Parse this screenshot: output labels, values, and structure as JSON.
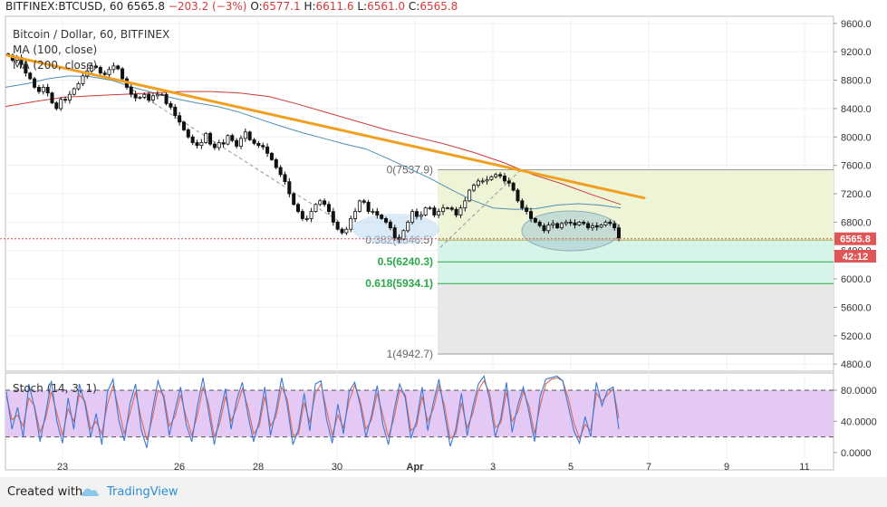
{
  "header": {
    "symbol": "BITFINEX:BTCUSD, 60",
    "last": "6565.8",
    "change": "−203.2 (−3%)",
    "open_label": "O:",
    "open": "6577.1",
    "high_label": "H:",
    "high": "6611.6",
    "low_label": "L:",
    "low": "6561.0",
    "close_label": "C:",
    "close": "6565.8"
  },
  "legend": {
    "title": "Bitcoin / Dollar, 60, BITFINEX",
    "ma100": "MA (100, close)",
    "ma200": "MA (200, close)",
    "stoch": "Stoch (14, 3, 1)"
  },
  "price_badge": "6565.8",
  "time_badge": "42:12",
  "footer": {
    "created_with": "Created with",
    "brand": "TradingView",
    "icon": "tradingview-cloud-icon"
  },
  "colors": {
    "trendline": "#f0a020",
    "ma100": "#4f8fb0",
    "ma200": "#d03a3a",
    "stoch_k": "#3a78d6",
    "stoch_d": "#e06a50",
    "stoch_band": "#e3c9f4",
    "fib_upper": "#eef5d6",
    "fib_mid": "#d7f4e8",
    "fib_lower": "#e8e8e8",
    "badge": "#e05555"
  },
  "chart_data": [
    {
      "type": "candlestick",
      "x_ticks": [
        "23",
        "26",
        "28",
        "30",
        "Apr",
        "3",
        "5",
        "7",
        "9",
        "11"
      ],
      "y_ticks": [
        4800.0,
        5200.0,
        5600.0,
        6000.0,
        6400.0,
        6800.0,
        7200.0,
        7600.0,
        8000.0,
        8400.0,
        8800.0,
        9200.0,
        9600.0
      ],
      "ylim": [
        4700,
        9700
      ],
      "close": [
        9150,
        9080,
        9120,
        9020,
        8900,
        8820,
        8700,
        8640,
        8700,
        8620,
        8480,
        8400,
        8530,
        8520,
        8600,
        8680,
        8750,
        8860,
        8930,
        9000,
        8980,
        8900,
        8880,
        8950,
        9000,
        8960,
        8820,
        8700,
        8600,
        8550,
        8560,
        8600,
        8520,
        8580,
        8600,
        8600,
        8470,
        8420,
        8300,
        8210,
        8100,
        8000,
        7920,
        7880,
        7920,
        8050,
        7900,
        7850,
        7920,
        7900,
        8020,
        7950,
        7870,
        7980,
        8070,
        7960,
        7910,
        7880,
        7860,
        7770,
        7680,
        7570,
        7470,
        7370,
        7200,
        7050,
        6950,
        6850,
        6850,
        6950,
        7050,
        7100,
        7050,
        6950,
        6800,
        6700,
        6650,
        6700,
        6850,
        6950,
        7100,
        7080,
        6950,
        6950,
        6900,
        6850,
        6800,
        6720,
        6580,
        6560,
        6680,
        6800,
        6950,
        6880,
        6900,
        7000,
        7000,
        6900,
        6950,
        7000,
        7000,
        6980,
        6900,
        7000,
        7100,
        7250,
        7320,
        7380,
        7380,
        7400,
        7440,
        7470,
        7450,
        7380,
        7350,
        7250,
        7100,
        7000,
        6950,
        6850,
        6800,
        6750,
        6680,
        6760,
        6780,
        6720,
        6780,
        6800,
        6790,
        6760,
        6800,
        6780,
        6720,
        6750,
        6730,
        6760,
        6800,
        6780,
        6720,
        6580
      ],
      "trendline": {
        "from": {
          "x": "22",
          "y": 9150
        },
        "to": {
          "x": "6",
          "y": 7140
        }
      },
      "ma100": [
        8700,
        8750,
        8820,
        8860,
        8850,
        8800,
        8700,
        8620,
        8540,
        8480,
        8430,
        8350,
        8250,
        8150,
        8060,
        7980,
        7900,
        7830,
        7700,
        7560,
        7420,
        7260,
        7110,
        7000,
        6980,
        6990,
        7040,
        7060,
        7040,
        7000
      ],
      "ma200": [
        8430,
        8500,
        8560,
        8580,
        8600,
        8620,
        8640,
        8640,
        8620,
        8570,
        8460,
        8340,
        8220,
        8100,
        8000,
        7900,
        7780,
        7640,
        7470,
        7340,
        7190,
        7050
      ],
      "fibonacci": [
        {
          "label": "0(7537.9)",
          "level": 7537.9
        },
        {
          "label": "0.382(6546.5)",
          "level": 6546.5
        },
        {
          "label": "0.5(6240.3)",
          "level": 6240.3
        },
        {
          "label": "0.618(5934.1)",
          "level": 5934.1
        },
        {
          "label": "1(4942.7)",
          "level": 4942.7
        }
      ],
      "last_price": 6565.8
    },
    {
      "type": "line",
      "name": "Stoch (14, 3, 1)",
      "y_ticks": [
        0.0,
        40.0,
        80.0
      ],
      "band": [
        20,
        80
      ],
      "ylim": [
        -6,
        102
      ],
      "series": [
        {
          "name": "%K",
          "values": [
            78,
            30,
            58,
            20,
            88,
            58,
            14,
            50,
            92,
            40,
            12,
            70,
            30,
            88,
            62,
            20,
            50,
            10,
            78,
            94,
            42,
            15,
            62,
            88,
            30,
            6,
            54,
            92,
            70,
            22,
            54,
            84,
            36,
            14,
            60,
            96,
            52,
            10,
            48,
            82,
            30,
            68,
            90,
            48,
            14,
            40,
            84,
            22,
            54,
            96,
            60,
            10,
            30,
            76,
            28,
            88,
            92,
            42,
            12,
            62,
            24,
            78,
            90,
            60,
            20,
            48,
            86,
            36,
            10,
            54,
            88,
            70,
            18,
            40,
            84,
            28,
            64,
            94,
            50,
            8,
            30,
            76,
            22,
            58,
            88,
            98,
            68,
            20,
            44,
            90,
            26,
            60,
            84,
            52,
            14,
            72,
            94,
            96,
            98,
            92,
            60,
            28,
            12,
            46,
            20,
            90,
            60,
            80,
            84,
            30
          ]
        },
        {
          "name": "%D",
          "values": [
            72,
            42,
            48,
            34,
            70,
            60,
            26,
            44,
            78,
            50,
            22,
            56,
            40,
            74,
            66,
            30,
            40,
            24,
            62,
            86,
            56,
            24,
            50,
            78,
            44,
            16,
            44,
            80,
            74,
            34,
            46,
            74,
            46,
            22,
            48,
            84,
            62,
            20,
            38,
            72,
            40,
            58,
            82,
            58,
            24,
            34,
            72,
            34,
            46,
            84,
            68,
            22,
            24,
            64,
            38,
            76,
            88,
            54,
            22,
            48,
            32,
            66,
            86,
            66,
            30,
            42,
            76,
            48,
            20,
            44,
            80,
            74,
            28,
            34,
            72,
            40,
            56,
            86,
            60,
            18,
            24,
            64,
            32,
            50,
            80,
            92,
            76,
            32,
            38,
            78,
            40,
            52,
            78,
            60,
            24,
            60,
            88,
            94,
            96,
            92,
            70,
            38,
            18,
            36,
            28,
            76,
            66,
            74,
            82,
            44
          ]
        }
      ]
    }
  ]
}
